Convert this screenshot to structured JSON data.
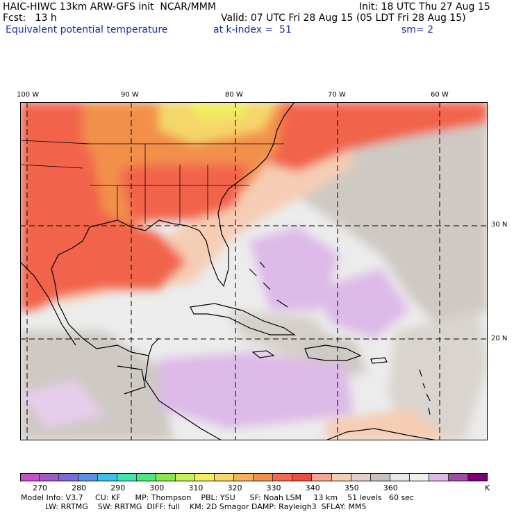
{
  "header": {
    "title": "HAIC-HIWC 13km ARW-GFS init  NCAR/MMM",
    "init": "Init: 18 UTC Thu 27 Aug 15",
    "fcst": "Fcst:   13 h",
    "valid": "Valid: 07 UTC Fri 28 Aug 15 (05 LDT Fri 28 Aug 15)",
    "field": "Equivalent potential temperature",
    "level": "at k-index =  51",
    "smooth": "sm= 2"
  },
  "map": {
    "lon_labels": [
      "100 W",
      "90 W",
      "80 W",
      "70 W",
      "60 W"
    ],
    "lat_labels": [
      "30 N",
      "20 N"
    ],
    "colors": {
      "warm": "#f2634b",
      "orange": "#f2904b",
      "light_orange": "#f7b07a",
      "salmon": "#f7a58c",
      "peach": "#f5cdb4",
      "gray": "#c9c2bc",
      "light_gray": "#e8e8e8",
      "lilac": "#ddb9e8",
      "yellow": "#f5d76b"
    }
  },
  "colorbar": {
    "colors": [
      "#c84fc8",
      "#a05cc8",
      "#7b6bdc",
      "#5b8fe6",
      "#3fbfe6",
      "#3fe6b4",
      "#4fe67b",
      "#8ce64f",
      "#c8f05a",
      "#f0f05a",
      "#f5d76b",
      "#f7b05a",
      "#f2904b",
      "#f26b4b",
      "#f24b3f",
      "#f7a58c",
      "#f5cdb4",
      "#e0d2c8",
      "#c9c2bc",
      "#e8e8e8",
      "#f0f0f0",
      "#ddb9e8",
      "#a04fa0",
      "#7a007a"
    ],
    "ticks": [
      "270",
      "280",
      "290",
      "300",
      "310",
      "320",
      "330",
      "340",
      "350",
      "360"
    ],
    "unit": "K"
  },
  "model_info": {
    "line1": "Model Info: V3.7     CU: KF      MP: Thompson    PBL: YSU      SF: Noah LSM     13 km    51 levels   60 sec",
    "line2": "          LW: RRTMG    SW: RRTMG  DIFF: full    KM: 2D Smagor DAMP: Rayleigh3  SFLAY: MM5"
  }
}
